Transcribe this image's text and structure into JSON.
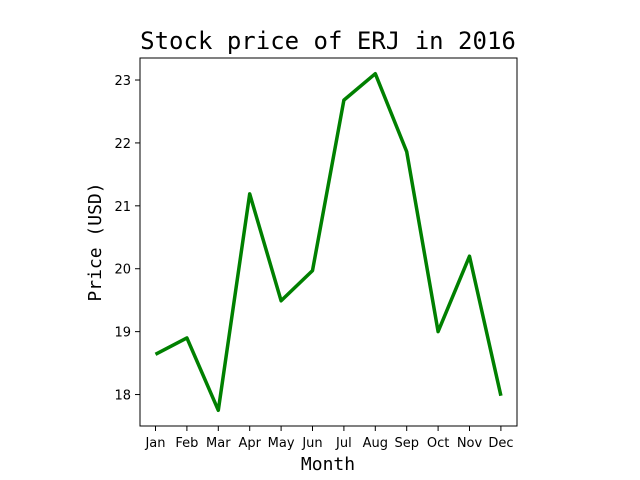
{
  "chart_data": {
    "type": "line",
    "title": "Stock price of ERJ in 2016",
    "xlabel": "Month",
    "ylabel": "Price (USD)",
    "categories": [
      "Jan",
      "Feb",
      "Mar",
      "Apr",
      "May",
      "Jun",
      "Jul",
      "Aug",
      "Sep",
      "Oct",
      "Nov",
      "Dec"
    ],
    "series": [
      {
        "values": [
          18.64,
          18.9,
          17.75,
          21.19,
          19.49,
          19.97,
          22.68,
          23.1,
          21.86,
          19.0,
          20.2,
          17.98
        ],
        "color": "#008000"
      }
    ],
    "ylim": [
      17.5,
      23.35
    ],
    "yticks": [
      18,
      19,
      20,
      21,
      22,
      23
    ],
    "grid": false,
    "legend": "none"
  }
}
